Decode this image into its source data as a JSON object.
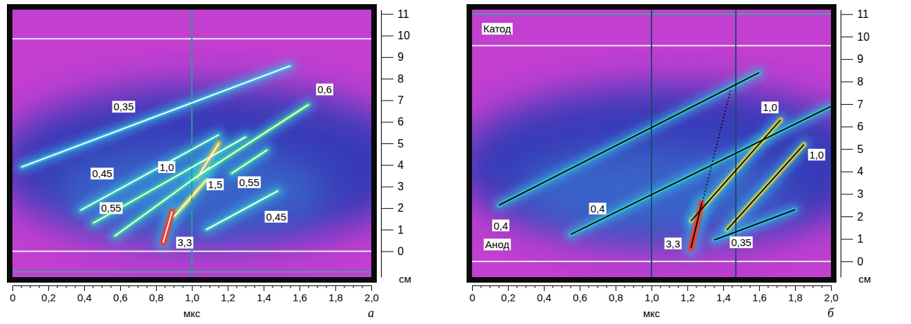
{
  "chart_data": [
    {
      "type": "streak",
      "panel_label": "а",
      "x_label": "мкс",
      "y_label": "см",
      "xlim": [
        0,
        2.0
      ],
      "ylim": [
        -1.2,
        11.2
      ],
      "xticks": [
        0,
        {
          "value": 0.2,
          "label": "0,2"
        },
        {
          "value": 0.4,
          "label": "0,4"
        },
        {
          "value": 0.6,
          "label": "0,6"
        },
        {
          "value": 0.8,
          "label": "0,8"
        },
        {
          "value": 1.0,
          "label": "1,0"
        },
        {
          "value": 1.2,
          "label": "1,2"
        },
        {
          "value": 1.4,
          "label": "1,4"
        },
        {
          "value": 1.6,
          "label": "1,6"
        },
        {
          "value": 1.8,
          "label": "1,8"
        },
        {
          "value": 2.0,
          "label": "2,0"
        }
      ],
      "xminor": [
        0.05,
        0.1,
        0.15,
        0.25,
        0.3,
        0.35,
        0.45,
        0.5,
        0.55,
        0.65,
        0.7,
        0.75,
        0.85,
        0.9,
        0.95,
        1.05,
        1.1,
        1.15,
        1.25,
        1.3,
        1.35,
        1.45,
        1.5,
        1.55,
        1.65,
        1.7,
        1.75,
        1.85,
        1.9,
        1.95
      ],
      "yticks": [
        0,
        1,
        2,
        3,
        4,
        5,
        6,
        7,
        8,
        9,
        10,
        11
      ],
      "hlines": [
        {
          "y": 9.85,
          "color": "#ecebf2"
        },
        {
          "y": 0,
          "color": "#ecebf2"
        },
        {
          "y": -0.95,
          "color": "#3aa6a6"
        }
      ],
      "vlines": [
        {
          "x": 1.0,
          "color": "#2a9a9a"
        }
      ],
      "annotations": [
        {
          "label": "0,35",
          "value": 0.35,
          "label_x": 0.62,
          "label_y": 6.7,
          "color": "#ffffff",
          "line_style": "solid",
          "segments": [
            [
              0.05,
              3.9,
              1.55,
              8.6
            ]
          ]
        },
        {
          "label": "0,45",
          "value": 0.45,
          "label_x": 0.5,
          "label_y": 3.6,
          "color": "#ffffff",
          "line_style": "solid",
          "segments": [
            [
              0.38,
              1.9,
              1.15,
              5.4
            ]
          ]
        },
        {
          "label": "0,55",
          "value": 0.55,
          "label_x": 0.55,
          "label_y": 2.0,
          "color": "#ffffff",
          "line_style": "solid",
          "segments": [
            [
              0.45,
              1.3,
              1.3,
              5.3
            ],
            [
              0.57,
              0.7,
              1.1,
              3.9
            ]
          ]
        },
        {
          "label": "1,0",
          "value": 1.0,
          "label_x": 0.86,
          "label_y": 3.9,
          "color": "#ffffff",
          "line_style": "solid",
          "segments": [
            [
              0.9,
              1.6,
              1.08,
              3.3
            ]
          ]
        },
        {
          "label": "3,3",
          "value": 3.3,
          "label_x": 0.96,
          "label_y": 0.4,
          "color": "#ffffff",
          "line_style": "solid",
          "segments": [
            [
              0.84,
              0.4,
              0.89,
              1.85
            ]
          ]
        },
        {
          "label": "1,5",
          "value": 1.5,
          "label_x": 1.13,
          "label_y": 3.1,
          "color": "#ffffff",
          "line_style": "solid",
          "segments": [
            [
              1.03,
              3.4,
              1.15,
              5.0
            ]
          ]
        },
        {
          "label": "0,6",
          "value": 0.6,
          "label_x": 1.74,
          "label_y": 7.5,
          "color": "#ffffff",
          "line_style": "solid",
          "segments": [
            [
              1.0,
              3.3,
              1.65,
              6.8
            ]
          ]
        },
        {
          "label": "0,55",
          "value": 0.55,
          "label_x": 1.32,
          "label_y": 3.2,
          "color": "#ffffff",
          "line_style": "solid",
          "segments": [
            [
              1.22,
              3.6,
              1.42,
              4.7
            ]
          ]
        },
        {
          "label": "0,45",
          "value": 0.45,
          "label_x": 1.47,
          "label_y": 1.6,
          "color": "#ffffff",
          "line_style": "solid",
          "segments": [
            [
              1.08,
              1.0,
              1.48,
              2.8
            ]
          ]
        }
      ]
    },
    {
      "type": "streak",
      "panel_label": "б",
      "x_label": "мкс",
      "y_label": "см",
      "xlim": [
        0,
        2.0
      ],
      "ylim": [
        -0.7,
        11.2
      ],
      "xticks": [
        0,
        {
          "value": 0.2,
          "label": "0,2"
        },
        {
          "value": 0.4,
          "label": "0,4"
        },
        {
          "value": 0.6,
          "label": "0,6"
        },
        {
          "value": 0.8,
          "label": "0,8"
        },
        {
          "value": 1.0,
          "label": "1,0"
        },
        {
          "value": 1.2,
          "label": "1,2"
        },
        {
          "value": 1.4,
          "label": "1,4"
        },
        {
          "value": 1.6,
          "label": "1,6"
        },
        {
          "value": 1.8,
          "label": "1,8"
        },
        {
          "value": 2.0,
          "label": "2,0"
        }
      ],
      "xminor": [
        0.05,
        0.1,
        0.15,
        0.25,
        0.3,
        0.35,
        0.45,
        0.5,
        0.55,
        0.65,
        0.7,
        0.75,
        0.85,
        0.9,
        0.95,
        1.05,
        1.1,
        1.15,
        1.25,
        1.3,
        1.35,
        1.45,
        1.5,
        1.55,
        1.65,
        1.7,
        1.75,
        1.85,
        1.9,
        1.95
      ],
      "yticks": [
        0,
        1,
        2,
        3,
        4,
        5,
        6,
        7,
        8,
        9,
        10,
        11
      ],
      "hlines": [
        {
          "y": 11.0,
          "color": "#3aa8a8"
        },
        {
          "y": 9.6,
          "color": "#ecebf2"
        },
        {
          "y": 0,
          "color": "#ecebf2"
        }
      ],
      "vlines": [
        {
          "x": 1.0,
          "color": "#1a4a70"
        },
        {
          "x": 1.47,
          "color": "#1a4a70"
        }
      ],
      "texts": [
        {
          "text": "Катод",
          "x": 0.14,
          "y": 10.35
        },
        {
          "text": "Анод",
          "x": 0.14,
          "y": 0.75
        }
      ],
      "annotations": [
        {
          "label": "0,4",
          "value": 0.4,
          "label_x": 0.16,
          "label_y": 1.6,
          "color": "#000000",
          "line_style": "solid",
          "segments": [
            [
              0.15,
              2.5,
              1.6,
              8.4
            ]
          ]
        },
        {
          "label": "0,4",
          "value": 0.4,
          "label_x": 0.7,
          "label_y": 2.35,
          "color": "#000000",
          "line_style": "solid",
          "segments": [
            [
              0.55,
              1.2,
              2.0,
              6.9
            ]
          ]
        },
        {
          "label": "1,0",
          "value": 1.0,
          "label_x": 1.66,
          "label_y": 6.85,
          "color": "#000000",
          "line_style": "solid",
          "segments": [
            [
              1.22,
              1.8,
              1.72,
              6.3
            ]
          ]
        },
        {
          "color": "#000000",
          "line_style": "dotted",
          "segments": [
            [
              1.27,
              2.2,
              1.44,
              7.6
            ]
          ]
        },
        {
          "label": "1,0",
          "value": 1.0,
          "label_x": 1.92,
          "label_y": 4.75,
          "color": "#000000",
          "line_style": "solid",
          "segments": [
            [
              1.42,
              1.4,
              1.85,
              5.2
            ]
          ]
        },
        {
          "label": "3,3",
          "value": 3.3,
          "label_x": 1.12,
          "label_y": 0.8,
          "color": "#000000",
          "line_style": "solid",
          "segments": [
            [
              1.22,
              0.6,
              1.28,
              2.6
            ]
          ]
        },
        {
          "label": "0,35",
          "value": 0.35,
          "label_x": 1.5,
          "label_y": 0.85,
          "color": "#000000",
          "line_style": "solid",
          "segments": [
            [
              1.35,
              0.95,
              1.8,
              2.3
            ]
          ]
        }
      ]
    }
  ]
}
